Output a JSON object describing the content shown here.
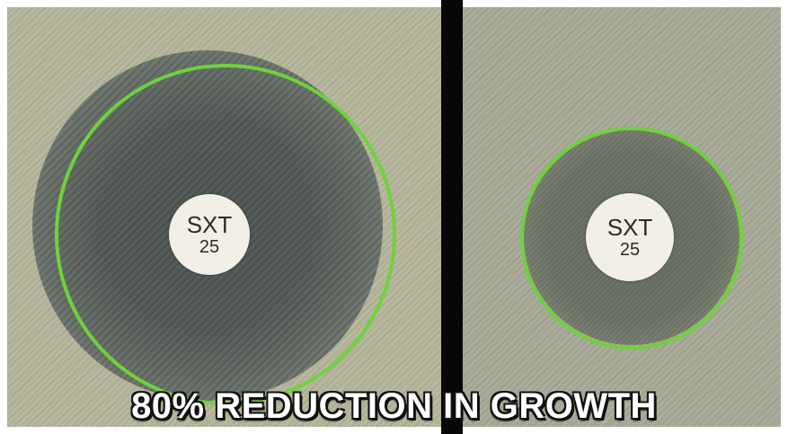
{
  "left_plate": {
    "disk": {
      "code": "SXT",
      "number": "25"
    }
  },
  "right_plate": {
    "disk": {
      "code": "SXT",
      "number": "25"
    }
  },
  "caption": "80% REDUCTION IN GROWTH",
  "colors": {
    "ring": "#6fd23d",
    "divider": "#070707",
    "caption_text": "#ffffff"
  }
}
